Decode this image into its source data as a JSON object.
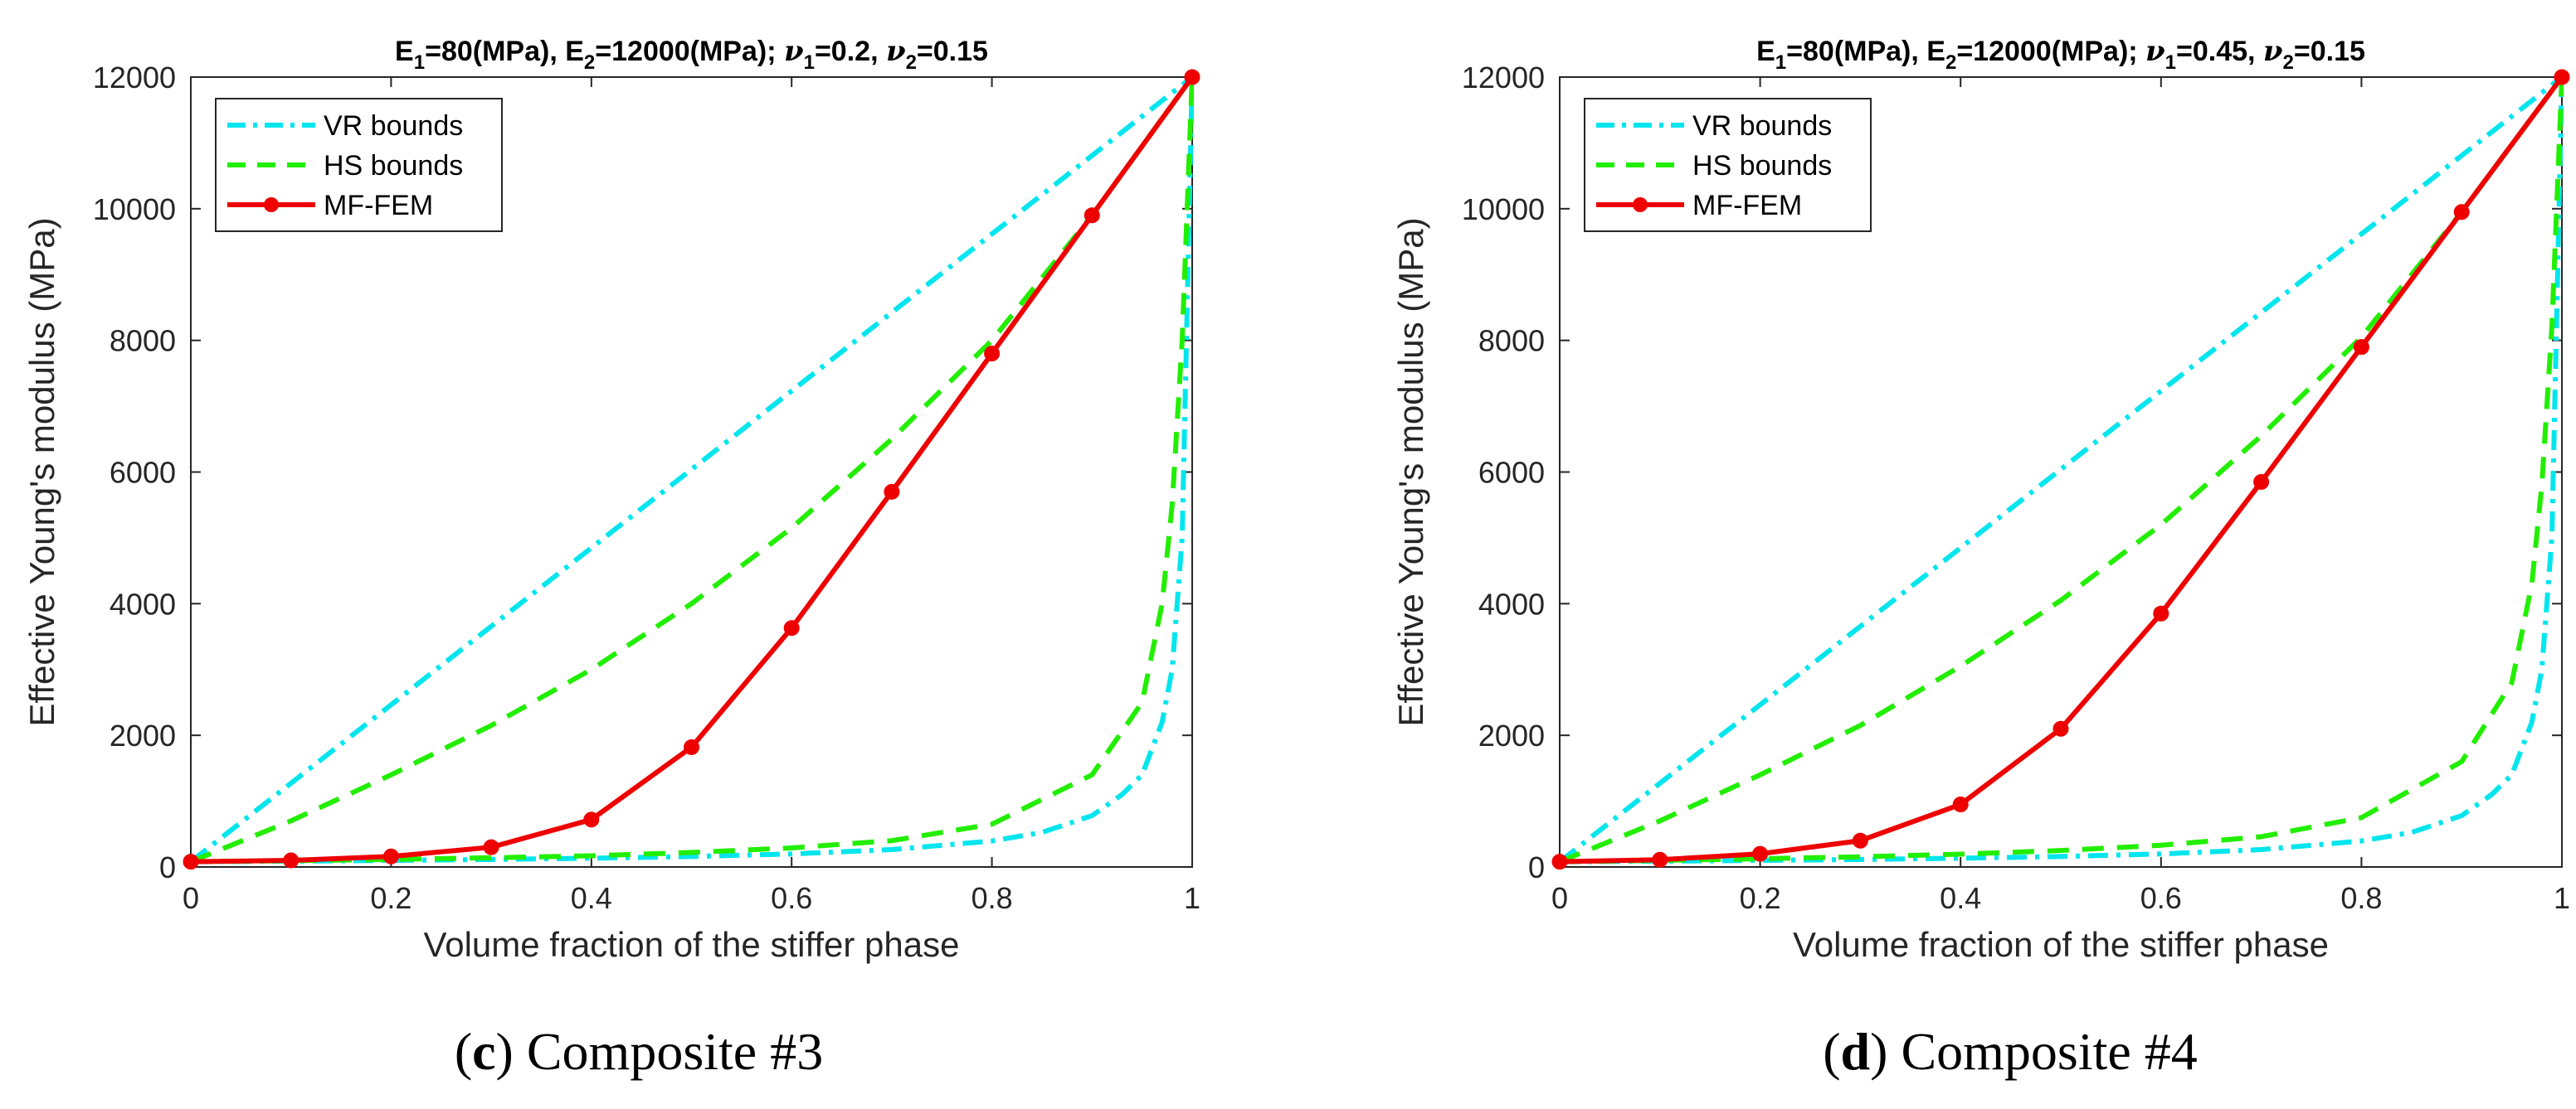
{
  "figure": {
    "panels": [
      {
        "caption_letter": "c",
        "caption_text": " Composite #3",
        "title_parts": [
          "E",
          "1",
          "=80(MPa), E",
          "2",
          "=12000(MPa); ",
          "ν",
          "1",
          "=0.2, ",
          "ν",
          "2",
          "=0.15"
        ]
      },
      {
        "caption_letter": "d",
        "caption_text": " Composite #4",
        "title_parts": [
          "E",
          "1",
          "=80(MPa), E",
          "2",
          "=12000(MPa); ",
          "ν",
          "1",
          "=0.45, ",
          "ν",
          "2",
          "=0.15"
        ]
      }
    ]
  },
  "chart_data": [
    {
      "type": "line",
      "title": "E1=80(MPa), E2=12000(MPa); ν1=0.2, ν2=0.15",
      "xlabel": "Volume fraction of the stiffer phase",
      "ylabel": "Effective Young's modulus (MPa)",
      "xlim": [
        0,
        1
      ],
      "ylim": [
        0,
        12000
      ],
      "xticks": [
        "0",
        "0.2",
        "0.4",
        "0.6",
        "0.8",
        "1"
      ],
      "yticks": [
        "0",
        "2000",
        "4000",
        "6000",
        "8000",
        "10000",
        "12000"
      ],
      "legend": [
        "VR bounds",
        "HS bounds",
        "MF-FEM"
      ],
      "legend_position": "top-left",
      "colors": {
        "vr": "#00e5ee",
        "hs": "#22ee00",
        "mf": "#ee0000"
      },
      "series": [
        {
          "name": "VR upper",
          "legend": "VR bounds",
          "style": "dashdot",
          "color": "#00e5ee",
          "x": [
            0,
            1
          ],
          "y": [
            80,
            12000
          ]
        },
        {
          "name": "VR lower",
          "legend": "VR bounds",
          "style": "dashdot",
          "color": "#00e5ee",
          "x": [
            0,
            0.1,
            0.2,
            0.3,
            0.4,
            0.5,
            0.6,
            0.7,
            0.8,
            0.85,
            0.9,
            0.93,
            0.95,
            0.97,
            0.98,
            0.99,
            1
          ],
          "y": [
            80,
            89,
            100,
            114,
            133,
            159,
            198,
            264,
            395,
            525,
            780,
            1100,
            1400,
            2200,
            3000,
            5000,
            12000
          ]
        },
        {
          "name": "HS upper",
          "legend": "HS bounds",
          "style": "dashed",
          "color": "#22ee00",
          "x": [
            0,
            0.1,
            0.2,
            0.3,
            0.4,
            0.5,
            0.6,
            0.7,
            0.8,
            0.9,
            1
          ],
          "y": [
            80,
            700,
            1400,
            2150,
            3000,
            4000,
            5150,
            6500,
            8000,
            9900,
            12000
          ]
        },
        {
          "name": "HS lower",
          "legend": "HS bounds",
          "style": "dashed",
          "color": "#22ee00",
          "x": [
            0,
            0.1,
            0.2,
            0.3,
            0.4,
            0.5,
            0.6,
            0.7,
            0.8,
            0.9,
            0.95,
            0.97,
            0.98,
            0.99,
            1
          ],
          "y": [
            80,
            95,
            115,
            140,
            170,
            220,
            290,
            400,
            650,
            1400,
            2500,
            4000,
            5500,
            8000,
            12000
          ]
        },
        {
          "name": "MF-FEM",
          "legend": "MF-FEM",
          "style": "solid-marker",
          "color": "#ee0000",
          "x": [
            0,
            0.1,
            0.2,
            0.3,
            0.4,
            0.5,
            0.6,
            0.7,
            0.8,
            0.9,
            1
          ],
          "y": [
            80,
            100,
            160,
            300,
            720,
            1820,
            3630,
            5700,
            7800,
            9900,
            12000
          ]
        }
      ]
    },
    {
      "type": "line",
      "title": "E1=80(MPa), E2=12000(MPa); ν1=0.45, ν2=0.15",
      "xlabel": "Volume fraction of the stiffer phase",
      "ylabel": "Effective Young's modulus (MPa)",
      "xlim": [
        0,
        1
      ],
      "ylim": [
        0,
        12000
      ],
      "xticks": [
        "0",
        "0.2",
        "0.4",
        "0.6",
        "0.8",
        "1"
      ],
      "yticks": [
        "0",
        "2000",
        "4000",
        "6000",
        "8000",
        "10000",
        "12000"
      ],
      "legend": [
        "VR bounds",
        "HS bounds",
        "MF-FEM"
      ],
      "legend_position": "top-left",
      "colors": {
        "vr": "#00e5ee",
        "hs": "#22ee00",
        "mf": "#ee0000"
      },
      "series": [
        {
          "name": "VR upper",
          "legend": "VR bounds",
          "style": "dashdot",
          "color": "#00e5ee",
          "x": [
            0,
            1
          ],
          "y": [
            80,
            12000
          ]
        },
        {
          "name": "VR lower",
          "legend": "VR bounds",
          "style": "dashdot",
          "color": "#00e5ee",
          "x": [
            0,
            0.1,
            0.2,
            0.3,
            0.4,
            0.5,
            0.6,
            0.7,
            0.8,
            0.85,
            0.9,
            0.93,
            0.95,
            0.97,
            0.98,
            0.99,
            1
          ],
          "y": [
            80,
            89,
            100,
            114,
            133,
            159,
            198,
            264,
            395,
            525,
            780,
            1100,
            1400,
            2200,
            3000,
            5000,
            12000
          ]
        },
        {
          "name": "HS upper",
          "legend": "HS bounds",
          "style": "dashed",
          "color": "#22ee00",
          "x": [
            0,
            0.1,
            0.2,
            0.3,
            0.4,
            0.5,
            0.6,
            0.7,
            0.8,
            0.9,
            1
          ],
          "y": [
            80,
            700,
            1400,
            2150,
            3050,
            4050,
            5200,
            6550,
            8050,
            9950,
            12000
          ]
        },
        {
          "name": "HS lower",
          "legend": "HS bounds",
          "style": "dashed",
          "color": "#22ee00",
          "x": [
            0,
            0.1,
            0.2,
            0.3,
            0.4,
            0.5,
            0.6,
            0.7,
            0.8,
            0.9,
            0.95,
            0.97,
            0.98,
            0.99,
            1
          ],
          "y": [
            80,
            100,
            125,
            155,
            195,
            250,
            330,
            460,
            750,
            1600,
            2800,
            4300,
            5800,
            8200,
            12000
          ]
        },
        {
          "name": "MF-FEM",
          "legend": "MF-FEM",
          "style": "solid-marker",
          "color": "#ee0000",
          "x": [
            0,
            0.1,
            0.2,
            0.3,
            0.4,
            0.5,
            0.6,
            0.7,
            0.8,
            0.9,
            1
          ],
          "y": [
            80,
            110,
            200,
            400,
            950,
            2100,
            3850,
            5850,
            7900,
            9950,
            12000
          ]
        }
      ]
    }
  ]
}
